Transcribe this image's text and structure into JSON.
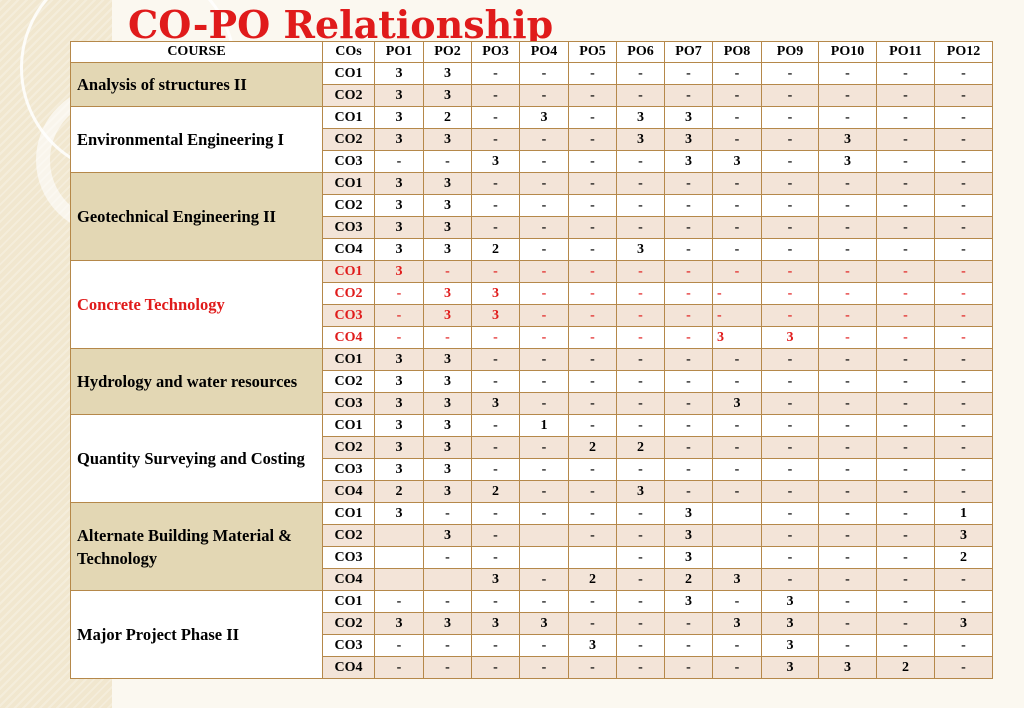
{
  "title": "CO-PO Relationship",
  "headers": [
    "COURSE",
    "COs",
    "PO1",
    "PO2",
    "PO3",
    "PO4",
    "PO5",
    "PO6",
    "PO7",
    "PO8",
    "PO9",
    "PO10",
    "PO11",
    "PO12"
  ],
  "courses": [
    {
      "name": "Analysis of structures II",
      "shade": true,
      "red": false,
      "rows": [
        {
          "co": "CO1",
          "v": [
            "3",
            "3",
            "-",
            "-",
            "-",
            "-",
            "-",
            "-",
            "-",
            "-",
            "-",
            "-"
          ]
        },
        {
          "co": "CO2",
          "v": [
            "3",
            "3",
            "-",
            "-",
            "-",
            "-",
            "-",
            "-",
            "-",
            "-",
            "-",
            "-"
          ]
        }
      ]
    },
    {
      "name": "Environmental Engineering I",
      "shade": false,
      "red": false,
      "rows": [
        {
          "co": "CO1",
          "v": [
            "3",
            "2",
            "-",
            "3",
            "-",
            "3",
            "3",
            "-",
            "-",
            "-",
            "-",
            "-"
          ]
        },
        {
          "co": "CO2",
          "v": [
            "3",
            "3",
            "-",
            "-",
            "-",
            "3",
            "3",
            "-",
            "-",
            "3",
            "-",
            "-"
          ]
        },
        {
          "co": "CO3",
          "v": [
            "-",
            "-",
            "3",
            "-",
            "-",
            "-",
            "3",
            "3",
            "-",
            "3",
            "-",
            "-"
          ]
        }
      ]
    },
    {
      "name": "Geotechnical Engineering II",
      "shade": true,
      "red": false,
      "rows": [
        {
          "co": "CO1",
          "v": [
            "3",
            "3",
            "-",
            "-",
            "-",
            "-",
            "-",
            "-",
            "-",
            "-",
            "-",
            "-"
          ]
        },
        {
          "co": "CO2",
          "v": [
            "3",
            "3",
            "-",
            "-",
            "-",
            "-",
            "-",
            "-",
            "-",
            "-",
            "-",
            "-"
          ]
        },
        {
          "co": "CO3",
          "v": [
            "3",
            "3",
            "-",
            "-",
            "-",
            "-",
            "-",
            "-",
            "-",
            "-",
            "-",
            "-"
          ]
        },
        {
          "co": "CO4",
          "v": [
            "3",
            "3",
            "2",
            "-",
            "-",
            "3",
            "-",
            "-",
            "-",
            "-",
            "-",
            "-"
          ]
        }
      ]
    },
    {
      "name": "Concrete Technology",
      "shade": false,
      "red": true,
      "rows": [
        {
          "co": "CO1",
          "v": [
            "3",
            "-",
            "-",
            "-",
            "-",
            "-",
            "-",
            "-",
            "-",
            "-",
            "-",
            "-"
          ]
        },
        {
          "co": "CO2",
          "v": [
            "-",
            "3",
            "3",
            "-",
            "-",
            "-",
            "-",
            "-",
            "-",
            "-",
            "-",
            "-"
          ]
        },
        {
          "co": "CO3",
          "v": [
            "-",
            "3",
            "3",
            "-",
            "-",
            "-",
            "-",
            "-",
            "-",
            "-",
            "-",
            "-"
          ]
        },
        {
          "co": "CO4",
          "v": [
            "-",
            "-",
            "-",
            "-",
            "-",
            "-",
            "-",
            "3",
            "3",
            "-",
            "-",
            "-"
          ]
        }
      ]
    },
    {
      "name": "Hydrology and water resources",
      "shade": true,
      "red": false,
      "rows": [
        {
          "co": "CO1",
          "v": [
            "3",
            "3",
            "-",
            "-",
            "-",
            "-",
            "-",
            "-",
            "-",
            "-",
            "-",
            "-"
          ]
        },
        {
          "co": "CO2",
          "v": [
            "3",
            "3",
            "-",
            "-",
            "-",
            "-",
            "-",
            "-",
            "-",
            "-",
            "-",
            "-"
          ]
        },
        {
          "co": "CO3",
          "v": [
            "3",
            "3",
            "3",
            "-",
            "-",
            "-",
            "-",
            "3",
            "-",
            "-",
            "-",
            "-"
          ]
        }
      ]
    },
    {
      "name": "Quantity Surveying and Costing",
      "shade": false,
      "red": false,
      "rows": [
        {
          "co": "CO1",
          "v": [
            "3",
            "3",
            "-",
            "1",
            "-",
            "-",
            "-",
            "-",
            "-",
            "-",
            "-",
            "-"
          ]
        },
        {
          "co": "CO2",
          "v": [
            "3",
            "3",
            "-",
            "-",
            "2",
            "2",
            "-",
            "-",
            "-",
            "-",
            "-",
            "-"
          ]
        },
        {
          "co": "CO3",
          "v": [
            "3",
            "3",
            "-",
            "-",
            "-",
            "-",
            "-",
            "-",
            "-",
            "-",
            "-",
            "-"
          ]
        },
        {
          "co": "CO4",
          "v": [
            "2",
            "3",
            "2",
            "-",
            "-",
            "3",
            "-",
            "-",
            "-",
            "-",
            "-",
            "-"
          ]
        }
      ]
    },
    {
      "name": "Alternate Building Material & Technology",
      "shade": true,
      "red": false,
      "rows": [
        {
          "co": "CO1",
          "v": [
            "3",
            "-",
            "-",
            "-",
            "-",
            "-",
            "3",
            "",
            "-",
            "-",
            "-",
            "1"
          ]
        },
        {
          "co": "CO2",
          "v": [
            "",
            "3",
            "-",
            "",
            "-",
            "-",
            "3",
            "",
            "-",
            "-",
            "-",
            "3"
          ]
        },
        {
          "co": "CO3",
          "v": [
            "",
            "-",
            "-",
            "",
            "",
            "-",
            "3",
            "",
            "-",
            "-",
            "-",
            "2"
          ]
        },
        {
          "co": "CO4",
          "v": [
            "",
            "",
            "3",
            "-",
            "2",
            "-",
            "2",
            "3",
            "-",
            "-",
            "-",
            "-"
          ]
        }
      ]
    },
    {
      "name": "Major Project Phase II",
      "shade": false,
      "red": false,
      "rows": [
        {
          "co": "CO1",
          "v": [
            "-",
            "-",
            "-",
            "-",
            "-",
            "-",
            "3",
            "-",
            "3",
            "-",
            "-",
            "-"
          ]
        },
        {
          "co": "CO2",
          "v": [
            "3",
            "3",
            "3",
            "3",
            "-",
            "-",
            "-",
            "3",
            "3",
            "-",
            "-",
            "3"
          ]
        },
        {
          "co": "CO3",
          "v": [
            "-",
            "-",
            "-",
            "-",
            "3",
            "-",
            "-",
            "-",
            "3",
            "-",
            "-",
            "-"
          ]
        },
        {
          "co": "CO4",
          "v": [
            "-",
            "-",
            "-",
            "-",
            "-",
            "-",
            "-",
            "-",
            "3",
            "3",
            "2",
            "-"
          ]
        }
      ]
    }
  ]
}
